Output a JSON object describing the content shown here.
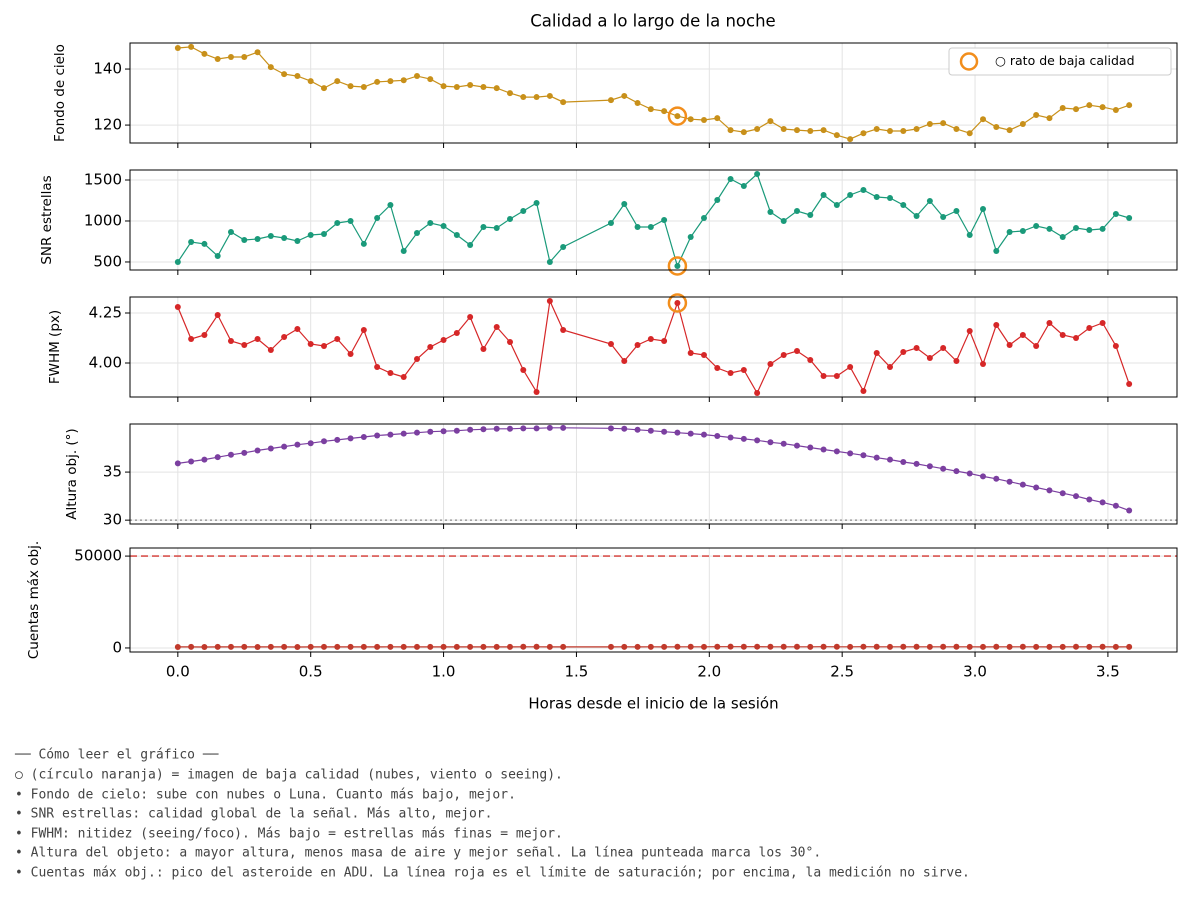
{
  "chart_data": [
    {
      "type": "line",
      "title": "Calidad a lo largo de la noche",
      "y_label": "Fondo de cielo",
      "color": "#c8901a",
      "x": [
        0,
        0.05,
        0.1,
        0.15,
        0.2,
        0.25,
        0.3,
        0.35,
        0.4,
        0.45,
        0.5,
        0.55,
        0.6,
        0.65,
        0.7,
        0.75,
        0.8,
        0.85,
        0.9,
        0.95,
        1.0,
        1.05,
        1.1,
        1.15,
        1.2,
        1.25,
        1.3,
        1.35,
        1.4,
        1.45,
        1.63,
        1.68,
        1.73,
        1.78,
        1.83,
        1.88,
        1.93,
        1.98,
        2.03,
        2.08,
        2.13,
        2.18,
        2.23,
        2.28,
        2.33,
        2.38,
        2.43,
        2.48,
        2.53,
        2.58,
        2.63,
        2.68,
        2.73,
        2.78,
        2.83,
        2.88,
        2.93,
        2.98,
        3.03,
        3.08,
        3.13,
        3.18,
        3.23,
        3.28,
        3.33,
        3.38,
        3.43,
        3.48,
        3.53,
        3.58
      ],
      "values": [
        147.5,
        147.9,
        145.4,
        143.6,
        144.3,
        144.3,
        146,
        140.7,
        138.2,
        137.5,
        135.7,
        133.2,
        135.7,
        133.9,
        133.6,
        135.4,
        135.7,
        136,
        137.5,
        136.4,
        133.9,
        133.6,
        134.3,
        133.6,
        133.2,
        131.4,
        130,
        130,
        130.4,
        128.2,
        128.9,
        130.4,
        127.9,
        125.7,
        125,
        123.2,
        122.1,
        121.8,
        122.5,
        118.2,
        117.5,
        118.6,
        121.4,
        118.6,
        118.2,
        117.9,
        118.2,
        116.4,
        115,
        117.1,
        118.6,
        117.9,
        117.9,
        118.6,
        120.4,
        120.7,
        118.6,
        117.1,
        122.1,
        119.3,
        118.2,
        120.4,
        123.6,
        122.5,
        126.1,
        125.7,
        127.1,
        126.4,
        125.4,
        127.1
      ],
      "highlight_indices": [
        35
      ],
      "highlight_color": "#f28e1c",
      "legend": {
        "label": "○ rato de baja calidad",
        "loc": "upper right"
      },
      "xlim": [
        -0.18,
        3.76
      ],
      "xticks": [
        {
          "value": 0,
          "label": "0.0"
        },
        0.5,
        {
          "value": 1,
          "label": "1.0"
        },
        1.5,
        {
          "value": 2,
          "label": "2.0"
        },
        2.5,
        {
          "value": 3,
          "label": "3.0"
        },
        3.5
      ],
      "ylim": [
        113.6,
        149.3
      ],
      "yticks": [
        120,
        140
      ],
      "grid": true
    },
    {
      "type": "line",
      "y_label": "SNR estrellas",
      "color": "#1a9a7a",
      "x": [
        0,
        0.05,
        0.1,
        0.15,
        0.2,
        0.25,
        0.3,
        0.35,
        0.4,
        0.45,
        0.5,
        0.55,
        0.6,
        0.65,
        0.7,
        0.75,
        0.8,
        0.85,
        0.9,
        0.95,
        1.0,
        1.05,
        1.1,
        1.15,
        1.2,
        1.25,
        1.3,
        1.35,
        1.4,
        1.45,
        1.63,
        1.68,
        1.73,
        1.78,
        1.83,
        1.88,
        1.93,
        1.98,
        2.03,
        2.08,
        2.13,
        2.18,
        2.23,
        2.28,
        2.33,
        2.38,
        2.43,
        2.48,
        2.53,
        2.58,
        2.63,
        2.68,
        2.73,
        2.78,
        2.83,
        2.88,
        2.93,
        2.98,
        3.03,
        3.08,
        3.13,
        3.18,
        3.23,
        3.28,
        3.33,
        3.38,
        3.43,
        3.48,
        3.53,
        3.58
      ],
      "values": [
        500,
        744,
        720,
        573,
        866,
        768,
        780,
        817,
        793,
        756,
        829,
        841,
        976,
        1000,
        720,
        1036,
        1195,
        634,
        854,
        976,
        939,
        829,
        707,
        927,
        915,
        1024,
        1122,
        1219,
        500,
        683,
        976,
        1207,
        927,
        927,
        1012,
        451,
        805,
        1036,
        1256,
        1512,
        1427,
        1573,
        1110,
        1000,
        1122,
        1073,
        1317,
        1195,
        1317,
        1378,
        1293,
        1281,
        1195,
        1061,
        1244,
        1049,
        1122,
        829,
        1146,
        634,
        866,
        878,
        939,
        903,
        805,
        915,
        890,
        903,
        1085,
        1036
      ],
      "highlight_indices": [
        35
      ],
      "highlight_color": "#f28e1c",
      "xlim": [
        -0.18,
        3.76
      ],
      "xticks": [
        {
          "value": 0,
          "label": "0.0"
        },
        0.5,
        {
          "value": 1,
          "label": "1.0"
        },
        1.5,
        {
          "value": 2,
          "label": "2.0"
        },
        2.5,
        {
          "value": 3,
          "label": "3.0"
        },
        3.5
      ],
      "ylim": [
        402,
        1622
      ],
      "yticks": [
        500,
        1000,
        1500
      ],
      "grid": true
    },
    {
      "type": "line",
      "y_label": "FWHM (px)",
      "color": "#d62728",
      "x": [
        0,
        0.05,
        0.1,
        0.15,
        0.2,
        0.25,
        0.3,
        0.35,
        0.4,
        0.45,
        0.5,
        0.55,
        0.6,
        0.65,
        0.7,
        0.75,
        0.8,
        0.85,
        0.9,
        0.95,
        1.0,
        1.05,
        1.1,
        1.15,
        1.2,
        1.25,
        1.3,
        1.35,
        1.4,
        1.45,
        1.63,
        1.68,
        1.73,
        1.78,
        1.83,
        1.88,
        1.93,
        1.98,
        2.03,
        2.08,
        2.13,
        2.18,
        2.23,
        2.28,
        2.33,
        2.38,
        2.43,
        2.48,
        2.53,
        2.58,
        2.63,
        2.68,
        2.73,
        2.78,
        2.83,
        2.88,
        2.93,
        2.98,
        3.03,
        3.08,
        3.13,
        3.18,
        3.23,
        3.28,
        3.33,
        3.38,
        3.43,
        3.48,
        3.53,
        3.58
      ],
      "values": [
        4.28,
        4.12,
        4.14,
        4.24,
        4.11,
        4.09,
        4.12,
        4.065,
        4.13,
        4.17,
        4.095,
        4.085,
        4.12,
        4.045,
        4.165,
        3.98,
        3.95,
        3.93,
        4.02,
        4.08,
        4.115,
        4.15,
        4.23,
        4.07,
        4.18,
        4.105,
        3.965,
        3.855,
        4.31,
        4.165,
        4.095,
        4.01,
        4.09,
        4.12,
        4.11,
        4.3,
        4.05,
        4.04,
        3.975,
        3.95,
        3.965,
        3.85,
        3.995,
        4.04,
        4.06,
        4.015,
        3.935,
        3.935,
        3.98,
        3.86,
        4.05,
        3.98,
        4.055,
        4.075,
        4.025,
        4.075,
        4.01,
        4.16,
        3.995,
        4.19,
        4.09,
        4.14,
        4.085,
        4.2,
        4.14,
        4.125,
        4.175,
        4.2,
        4.085,
        3.895
      ],
      "highlight_indices": [
        35
      ],
      "highlight_color": "#f28e1c",
      "xlim": [
        -0.18,
        3.76
      ],
      "xticks": [
        {
          "value": 0,
          "label": "0.0"
        },
        0.5,
        {
          "value": 1,
          "label": "1.0"
        },
        1.5,
        {
          "value": 2,
          "label": "2.0"
        },
        2.5,
        {
          "value": 3,
          "label": "3.0"
        },
        3.5
      ],
      "ylim": [
        3.83,
        4.33
      ],
      "yticks": [
        {
          "value": 4,
          "label": "4.00"
        },
        4.25
      ],
      "grid": true
    },
    {
      "type": "line",
      "y_label": "Altura obj. (°)",
      "color": "#7b3fa0",
      "x": [
        0,
        0.05,
        0.1,
        0.15,
        0.2,
        0.25,
        0.3,
        0.35,
        0.4,
        0.45,
        0.5,
        0.55,
        0.6,
        0.65,
        0.7,
        0.75,
        0.8,
        0.85,
        0.9,
        0.95,
        1.0,
        1.05,
        1.1,
        1.15,
        1.2,
        1.25,
        1.3,
        1.35,
        1.4,
        1.45,
        1.63,
        1.68,
        1.73,
        1.78,
        1.83,
        1.88,
        1.93,
        1.98,
        2.03,
        2.08,
        2.13,
        2.18,
        2.23,
        2.28,
        2.33,
        2.38,
        2.43,
        2.48,
        2.53,
        2.58,
        2.63,
        2.68,
        2.73,
        2.78,
        2.83,
        2.88,
        2.93,
        2.98,
        3.03,
        3.08,
        3.13,
        3.18,
        3.23,
        3.28,
        3.33,
        3.38,
        3.43,
        3.48,
        3.53,
        3.58
      ],
      "values": [
        35.9,
        36.1,
        36.3,
        36.55,
        36.8,
        37.0,
        37.25,
        37.45,
        37.65,
        37.85,
        38.0,
        38.2,
        38.35,
        38.5,
        38.65,
        38.8,
        38.9,
        39.0,
        39.1,
        39.2,
        39.25,
        39.3,
        39.4,
        39.45,
        39.5,
        39.5,
        39.55,
        39.55,
        39.6,
        39.6,
        39.55,
        39.5,
        39.4,
        39.3,
        39.2,
        39.1,
        39.0,
        38.9,
        38.75,
        38.6,
        38.45,
        38.3,
        38.1,
        37.95,
        37.75,
        37.55,
        37.35,
        37.15,
        36.95,
        36.75,
        36.5,
        36.3,
        36.05,
        35.85,
        35.6,
        35.35,
        35.1,
        34.85,
        34.55,
        34.3,
        34.0,
        33.7,
        33.4,
        33.1,
        32.8,
        32.5,
        32.15,
        31.85,
        31.5,
        31.0
      ],
      "hline": {
        "value": 30,
        "style": "dotted",
        "color": "#888888"
      },
      "xlim": [
        -0.18,
        3.76
      ],
      "xticks": [
        {
          "value": 0,
          "label": "0.0"
        },
        0.5,
        {
          "value": 1,
          "label": "1.0"
        },
        1.5,
        {
          "value": 2,
          "label": "2.0"
        },
        2.5,
        {
          "value": 3,
          "label": "3.0"
        },
        3.5
      ],
      "ylim": [
        29.6,
        40.0
      ],
      "yticks": [
        30,
        35
      ],
      "grid": true
    },
    {
      "type": "line",
      "y_label": "Cuentas máx obj.",
      "x_label": "Horas desde el inicio de la sesión",
      "color": "#c0392b",
      "x": [
        0,
        0.05,
        0.1,
        0.15,
        0.2,
        0.25,
        0.3,
        0.35,
        0.4,
        0.45,
        0.5,
        0.55,
        0.6,
        0.65,
        0.7,
        0.75,
        0.8,
        0.85,
        0.9,
        0.95,
        1.0,
        1.05,
        1.1,
        1.15,
        1.2,
        1.25,
        1.3,
        1.35,
        1.4,
        1.45,
        1.63,
        1.68,
        1.73,
        1.78,
        1.83,
        1.88,
        1.93,
        1.98,
        2.03,
        2.08,
        2.13,
        2.18,
        2.23,
        2.28,
        2.33,
        2.38,
        2.43,
        2.48,
        2.53,
        2.58,
        2.63,
        2.68,
        2.73,
        2.78,
        2.83,
        2.88,
        2.93,
        2.98,
        3.03,
        3.08,
        3.13,
        3.18,
        3.23,
        3.28,
        3.33,
        3.38,
        3.43,
        3.48,
        3.53,
        3.58
      ],
      "values": [
        550,
        560,
        540,
        570,
        560,
        580,
        550,
        570,
        560,
        540,
        590,
        560,
        570,
        580,
        560,
        600,
        620,
        580,
        570,
        560,
        600,
        590,
        580,
        570,
        560,
        600,
        640,
        650,
        600,
        580,
        590,
        610,
        600,
        620,
        600,
        640,
        630,
        610,
        660,
        700,
        680,
        690,
        650,
        640,
        630,
        620,
        660,
        640,
        610,
        690,
        650,
        620,
        640,
        630,
        610,
        640,
        650,
        620,
        600,
        630,
        620,
        650,
        610,
        600,
        620,
        640,
        610,
        630,
        600,
        620
      ],
      "hline": {
        "value": 50000,
        "style": "dashed",
        "color": "#d9534f"
      },
      "xlim": [
        -0.18,
        3.76
      ],
      "xticks": [
        {
          "value": 0,
          "label": "0.0"
        },
        0.5,
        {
          "value": 1,
          "label": "1.0"
        },
        1.5,
        {
          "value": 2,
          "label": "2.0"
        },
        2.5,
        {
          "value": 3,
          "label": "3.0"
        },
        3.5
      ],
      "ylim": [
        -2200,
        54400
      ],
      "yticks": [
        0,
        50000
      ],
      "grid": true
    }
  ],
  "notes": {
    "heading": "── Cómo leer el gráfico ──",
    "lines": [
      "○ (círculo naranja) = imagen de baja calidad (nubes, viento o seeing).",
      "• Fondo de cielo: sube con nubes o Luna. Cuanto más bajo, mejor.",
      "• SNR estrellas: calidad global de la señal. Más alto, mejor.",
      "• FWHM: nitidez (seeing/foco). Más bajo = estrellas más finas = mejor.",
      "• Altura del objeto: a mayor altura, menos masa de aire y mejor señal. La línea punteada marca los 30°.",
      "• Cuentas máx obj.: pico del asteroide en ADU. La línea roja es el límite de saturación; por encima, la medición no sirve."
    ]
  }
}
